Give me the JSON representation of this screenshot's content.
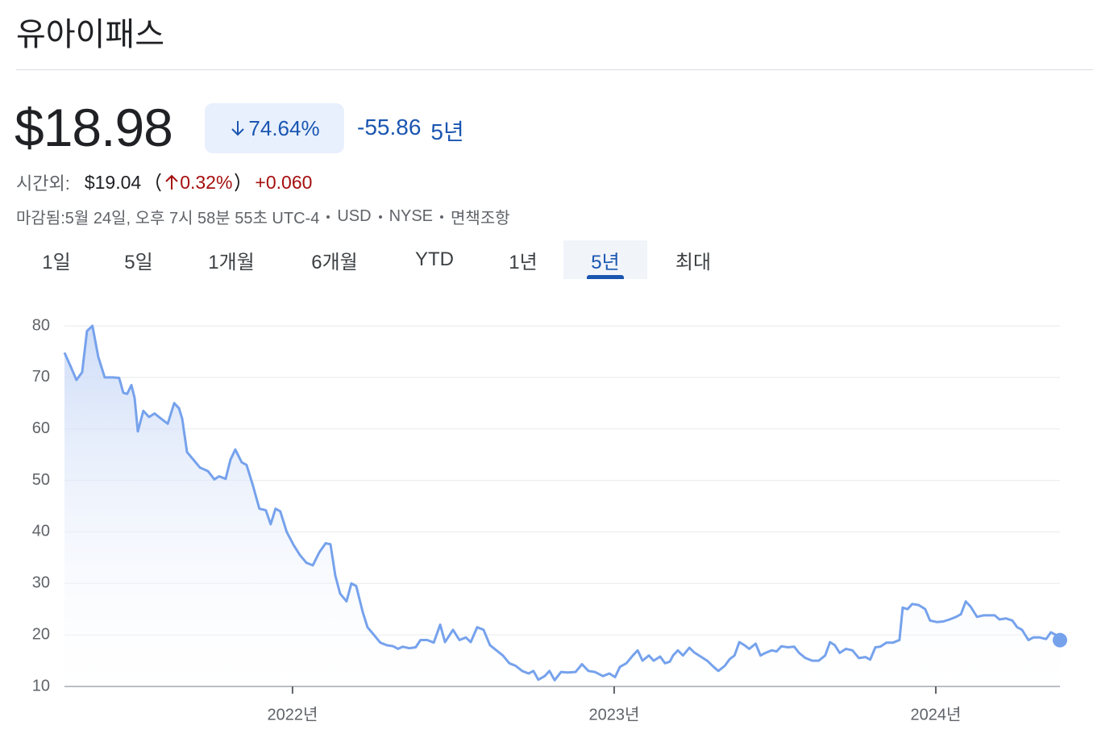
{
  "header": {
    "title": "유아이패스"
  },
  "quote": {
    "price": "$18.98",
    "change_percent": "74.64%",
    "change": "-55.86",
    "period": "5년"
  },
  "after_hours": {
    "label": "시간외:",
    "price": "$19.04",
    "change_percent": "0.32%",
    "change": "+0.060"
  },
  "meta": {
    "status": "마감됨:5월 24일, 오후 7시 58분 55초 UTC-4",
    "currency": "USD",
    "exchange": "NYSE",
    "disclaimer": "면책조항"
  },
  "tabs": {
    "items": [
      "1일",
      "5일",
      "1개월",
      "6개월",
      "YTD",
      "1년",
      "5년",
      "최대"
    ],
    "selected": 6
  },
  "chart_data": {
    "type": "line",
    "color": "#76a2ec",
    "area": true,
    "grid": true,
    "end_marker": true,
    "ylim": [
      10,
      80
    ],
    "yticks": [
      10,
      20,
      30,
      40,
      50,
      60,
      70,
      80
    ],
    "xlim": [
      2021.291,
      2024.386
    ],
    "xticks": [
      {
        "value": 2022,
        "label": "2022년"
      },
      {
        "value": 2023,
        "label": "2023년"
      },
      {
        "value": 2024,
        "label": "2024년"
      }
    ],
    "x": [
      2021.291,
      2021.311,
      2021.328,
      2021.346,
      2021.361,
      2021.378,
      2021.396,
      2021.416,
      2021.441,
      2021.461,
      2021.474,
      2021.486,
      2021.499,
      2021.509,
      2021.519,
      2021.536,
      2021.554,
      2021.571,
      2021.591,
      2021.612,
      2021.632,
      2021.647,
      2021.657,
      2021.672,
      2021.692,
      2021.712,
      2021.737,
      2021.757,
      2021.772,
      2021.792,
      2021.807,
      2021.822,
      2021.842,
      2021.857,
      2021.877,
      2021.897,
      2021.917,
      2021.932,
      2021.947,
      2021.962,
      2021.982,
      2022.003,
      2022.023,
      2022.043,
      2022.063,
      2022.083,
      2022.103,
      2022.118,
      2022.133,
      2022.148,
      2022.168,
      2022.183,
      2022.198,
      2022.218,
      2022.233,
      2022.253,
      2022.273,
      2022.293,
      2022.313,
      2022.328,
      2022.343,
      2022.363,
      2022.383,
      2022.398,
      2022.419,
      2022.439,
      2022.459,
      2022.474,
      2022.499,
      2022.519,
      2022.539,
      2022.554,
      2022.574,
      2022.594,
      2022.614,
      2022.634,
      2022.654,
      2022.674,
      2022.694,
      2022.714,
      2022.734,
      2022.749,
      2022.764,
      2022.784,
      2022.799,
      2022.815,
      2022.835,
      2022.855,
      2022.88,
      2022.9,
      2022.92,
      2022.94,
      2022.965,
      2022.985,
      2023.003,
      2023.018,
      2023.038,
      2023.058,
      2023.073,
      2023.088,
      2023.108,
      2023.123,
      2023.143,
      2023.158,
      2023.173,
      2023.183,
      2023.198,
      2023.214,
      2023.234,
      2023.249,
      2023.269,
      2023.289,
      2023.309,
      2023.324,
      2023.344,
      2023.359,
      2023.374,
      2023.389,
      2023.405,
      2023.42,
      2023.44,
      2023.455,
      2023.47,
      2023.49,
      2023.505,
      2023.52,
      2023.54,
      2023.56,
      2023.575,
      2023.595,
      2023.616,
      2023.636,
      2023.656,
      2023.671,
      2023.686,
      2023.701,
      2023.721,
      2023.741,
      2023.761,
      2023.781,
      2023.796,
      2023.812,
      2023.827,
      2023.847,
      2023.867,
      2023.887,
      2023.897,
      2023.912,
      2023.927,
      2023.947,
      2023.967,
      2023.982,
      2024.003,
      2024.023,
      2024.043,
      2024.063,
      2024.078,
      2024.093,
      2024.108,
      2024.128,
      2024.148,
      2024.168,
      2024.183,
      2024.198,
      2024.218,
      2024.238,
      2024.253,
      2024.268,
      2024.288,
      2024.303,
      2024.323,
      2024.343,
      2024.358,
      2024.373,
      2024.386
    ],
    "values": [
      74.8,
      72,
      69.5,
      71,
      79,
      80,
      74,
      70,
      70,
      69.9,
      67,
      66.8,
      68.5,
      66,
      59.5,
      63.5,
      62.3,
      63,
      62,
      61,
      65,
      64,
      62,
      55.5,
      54,
      52.5,
      51.8,
      50.2,
      50.8,
      50.3,
      54,
      56,
      53.5,
      53,
      49,
      44.5,
      44.2,
      41.5,
      44.5,
      44,
      40,
      37.5,
      35.5,
      34,
      33.5,
      36,
      37.8,
      37.6,
      31.5,
      28,
      26.5,
      30,
      29.5,
      24.5,
      21.5,
      20,
      18.5,
      18,
      17.8,
      17.3,
      17.7,
      17.4,
      17.6,
      19,
      19,
      18.5,
      22,
      18.6,
      21,
      19,
      19.5,
      18.6,
      21.5,
      21,
      18,
      17,
      16,
      14.5,
      14,
      13,
      12.5,
      13,
      11.3,
      12,
      13,
      11.2,
      12.8,
      12.7,
      12.8,
      14.3,
      13,
      12.8,
      12,
      12.5,
      11.8,
      13.8,
      14.5,
      16,
      17,
      15,
      16,
      15,
      15.8,
      14.5,
      14.8,
      16,
      17,
      16,
      17.5,
      16.6,
      15.8,
      15,
      13.8,
      13,
      14,
      15.3,
      16,
      18.6,
      18,
      17.3,
      18.3,
      16,
      16.5,
      17,
      16.8,
      17.8,
      17.6,
      17.7,
      16.5,
      15.5,
      15,
      15,
      16,
      18.6,
      18,
      16.5,
      17.3,
      17,
      15.5,
      15.7,
      15.2,
      17.6,
      17.7,
      18.5,
      18.5,
      19,
      25.3,
      25,
      26,
      25.8,
      25,
      22.8,
      22.5,
      22.6,
      23,
      23.5,
      24,
      26.5,
      25.5,
      23.5,
      23.8,
      23.8,
      23.8,
      23,
      23.2,
      22.8,
      21.5,
      21,
      19,
      19.5,
      19.5,
      19.2,
      20.5,
      20,
      18.98
    ]
  }
}
